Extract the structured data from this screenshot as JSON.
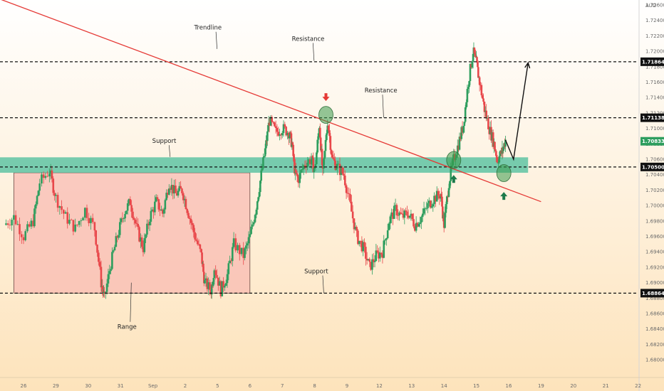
{
  "chart_data": {
    "type": "candlestick",
    "currency": "AUD",
    "ylim": [
      1.679,
      1.7275
    ],
    "y_ticks": [
      "1.72600",
      "1.72400",
      "1.72200",
      "1.72000",
      "1.71800",
      "1.71600",
      "1.71400",
      "1.71200",
      "1.71000",
      "1.70800",
      "1.70600",
      "1.70400",
      "1.70200",
      "1.70000",
      "1.69800",
      "1.69600",
      "1.69400",
      "1.69200",
      "1.69000",
      "1.68800",
      "1.68600",
      "1.68400",
      "1.68200",
      "1.68000"
    ],
    "x_ticks": [
      {
        "label": "26",
        "day": 0
      },
      {
        "label": "29",
        "day": 1
      },
      {
        "label": "30",
        "day": 2
      },
      {
        "label": "31",
        "day": 3
      },
      {
        "label": "Sep",
        "day": 4
      },
      {
        "label": "2",
        "day": 5
      },
      {
        "label": "5",
        "day": 6
      },
      {
        "label": "6",
        "day": 7
      },
      {
        "label": "7",
        "day": 8
      },
      {
        "label": "8",
        "day": 9
      },
      {
        "label": "9",
        "day": 10
      },
      {
        "label": "12",
        "day": 11
      },
      {
        "label": "13",
        "day": 12
      },
      {
        "label": "14",
        "day": 13
      },
      {
        "label": "15",
        "day": 14
      },
      {
        "label": "16",
        "day": 15
      },
      {
        "label": "19",
        "day": 16
      },
      {
        "label": "20",
        "day": 17
      },
      {
        "label": "21",
        "day": 18
      },
      {
        "label": "22",
        "day": 19
      }
    ],
    "price_path": [
      [
        -0.6,
        1.6975
      ],
      [
        -0.3,
        1.6985
      ],
      [
        0.0,
        1.696
      ],
      [
        0.3,
        1.698
      ],
      [
        0.5,
        1.703
      ],
      [
        0.8,
        1.7045
      ],
      [
        1.0,
        1.701
      ],
      [
        1.3,
        1.6985
      ],
      [
        1.6,
        1.697
      ],
      [
        1.9,
        1.6995
      ],
      [
        2.2,
        1.697
      ],
      [
        2.4,
        1.69
      ],
      [
        2.5,
        1.688
      ],
      [
        2.7,
        1.6925
      ],
      [
        2.9,
        1.696
      ],
      [
        3.1,
        1.699
      ],
      [
        3.3,
        1.7005
      ],
      [
        3.5,
        1.697
      ],
      [
        3.7,
        1.6945
      ],
      [
        3.9,
        1.6985
      ],
      [
        4.1,
        1.7005
      ],
      [
        4.3,
        1.699
      ],
      [
        4.5,
        1.703
      ],
      [
        4.7,
        1.7015
      ],
      [
        4.9,
        1.702
      ],
      [
        5.1,
        1.699
      ],
      [
        5.3,
        1.696
      ],
      [
        5.5,
        1.6935
      ],
      [
        5.6,
        1.69
      ],
      [
        5.8,
        1.689
      ],
      [
        5.9,
        1.692
      ],
      [
        6.1,
        1.689
      ],
      [
        6.3,
        1.691
      ],
      [
        6.5,
        1.695
      ],
      [
        6.8,
        1.6935
      ],
      [
        7.0,
        1.696
      ],
      [
        7.2,
        1.7
      ],
      [
        7.35,
        1.704
      ],
      [
        7.5,
        1.708
      ],
      [
        7.6,
        1.711
      ],
      [
        7.8,
        1.7095
      ],
      [
        8.0,
        1.71
      ],
      [
        8.2,
        1.7095
      ],
      [
        8.3,
        1.708
      ],
      [
        8.4,
        1.704
      ],
      [
        8.5,
        1.7035
      ],
      [
        8.7,
        1.7055
      ],
      [
        8.9,
        1.706
      ],
      [
        9.0,
        1.7045
      ],
      [
        9.15,
        1.7105
      ],
      [
        9.25,
        1.704
      ],
      [
        9.4,
        1.711
      ],
      [
        9.55,
        1.706
      ],
      [
        9.7,
        1.705
      ],
      [
        9.9,
        1.704
      ],
      [
        10.1,
        1.7
      ],
      [
        10.3,
        1.696
      ],
      [
        10.5,
        1.6945
      ],
      [
        10.7,
        1.692
      ],
      [
        10.9,
        1.6935
      ],
      [
        11.1,
        1.694
      ],
      [
        11.3,
        1.698
      ],
      [
        11.5,
        1.6995
      ],
      [
        11.7,
        1.6985
      ],
      [
        11.9,
        1.699
      ],
      [
        12.1,
        1.6975
      ],
      [
        12.3,
        1.6985
      ],
      [
        12.5,
        1.7
      ],
      [
        12.7,
        1.701
      ],
      [
        12.9,
        1.7015
      ],
      [
        13.0,
        1.6975
      ],
      [
        13.15,
        1.703
      ],
      [
        13.3,
        1.706
      ],
      [
        13.45,
        1.708
      ],
      [
        13.6,
        1.7105
      ],
      [
        13.75,
        1.716
      ],
      [
        13.9,
        1.72
      ],
      [
        14.0,
        1.7185
      ],
      [
        14.1,
        1.716
      ],
      [
        14.25,
        1.7125
      ],
      [
        14.4,
        1.71
      ],
      [
        14.55,
        1.708
      ],
      [
        14.65,
        1.706
      ],
      [
        14.8,
        1.707
      ],
      [
        14.9,
        1.7085
      ]
    ],
    "resistance_levels": [
      {
        "price": 1.71864,
        "label": "Resistance",
        "tag": "1.71864"
      },
      {
        "price": 1.71138,
        "label": "Resistance",
        "tag": "1.71138"
      }
    ],
    "support_levels": [
      {
        "price": 1.705,
        "label": "",
        "tag": "1.70500"
      },
      {
        "price": 1.68864,
        "label": "Support",
        "tag": "1.68864"
      }
    ],
    "support_zone": {
      "top": 1.70625,
      "bottom": 1.70425,
      "label": "Support"
    },
    "range_box": {
      "start_day": -0.3,
      "end_day": 7.0,
      "top": 1.70425,
      "bottom": 1.68864,
      "label": "Range"
    },
    "trendline": {
      "label": "Trendline",
      "p1": [
        -1.2,
        1.7275
      ],
      "p2": [
        16.0,
        1.7005
      ]
    },
    "current_price": {
      "label": "1.70833",
      "price": 1.70833
    },
    "projection": [
      [
        14.9,
        1.7085
      ],
      [
        15.15,
        1.706
      ],
      [
        15.6,
        1.7185
      ]
    ],
    "markers": [
      {
        "type": "circle",
        "day": 9.35,
        "price": 1.71175
      },
      {
        "type": "circle",
        "day": 13.3,
        "price": 1.7059
      },
      {
        "type": "circle",
        "day": 14.85,
        "price": 1.7042
      },
      {
        "type": "arrow-down",
        "day": 9.35,
        "price": 1.7141
      },
      {
        "type": "arrow-up",
        "day": 13.3,
        "price": 1.7034
      },
      {
        "type": "arrow-up",
        "day": 14.85,
        "price": 1.7012
      }
    ],
    "annotation_labels": {
      "trendline": "Trendline",
      "resistance_top": "Resistance",
      "resistance_mid": "Resistance",
      "support_zone": "Support",
      "support_bottom": "Support",
      "range": "Range"
    },
    "colors": {
      "bull": "#2e9e5e",
      "bear": "#e8474a",
      "trendline": "#e53935",
      "zone": "#5fc3a3",
      "range_fill": "#f7b3ae",
      "range_stroke": "#6a4a44",
      "bg_top": "#ffffff",
      "bg_bottom": "#fde3bb",
      "tag_bg": "#111111",
      "marker_circle": "#3a9a4c",
      "marker_up": "#1b7a4b",
      "marker_down": "#e53935"
    }
  }
}
